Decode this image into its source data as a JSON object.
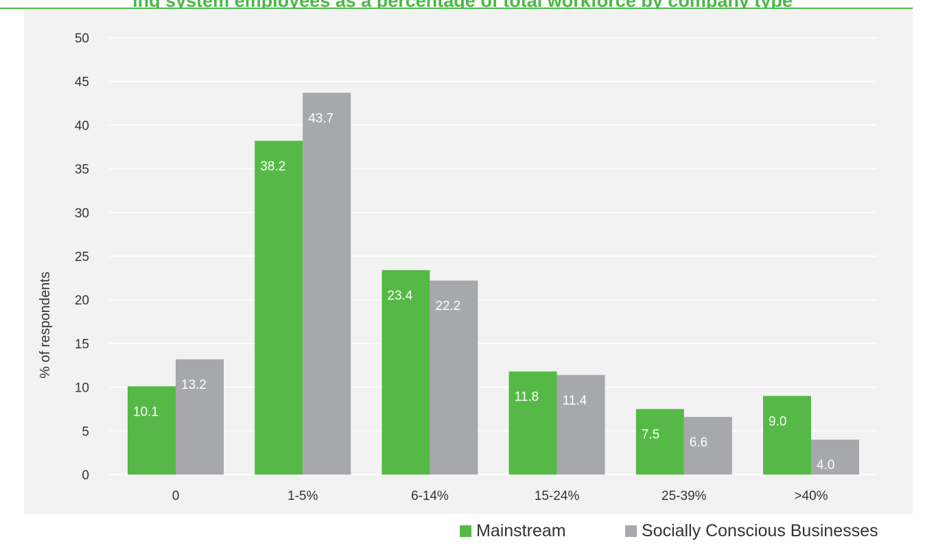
{
  "colors": {
    "mainstream": "#56b947",
    "socially_conscious": "#a6a8ab",
    "title": "#4cb848",
    "grid": "#ffffff",
    "panel": "#f2f2f2"
  },
  "chart_data": {
    "type": "bar",
    "title": "ing system employees as a percentage of total workforce by company type",
    "xlabel": "",
    "ylabel": "% of respondents",
    "ylim": [
      0,
      50
    ],
    "yticks": [
      0,
      5,
      10,
      15,
      20,
      25,
      30,
      35,
      40,
      45,
      50
    ],
    "grid": true,
    "legend_position": "bottom-right",
    "categories": [
      "0",
      "1-5%",
      "6-14%",
      "15-24%",
      "25-39%",
      ">40%"
    ],
    "series": [
      {
        "name": "Mainstream",
        "values": [
          10.1,
          38.2,
          23.4,
          11.8,
          7.5,
          9.0
        ],
        "labels": [
          "10.1",
          "38.2",
          "23.4",
          "11.8",
          "7.5",
          "9.0"
        ]
      },
      {
        "name": "Socially Conscious Businesses",
        "values": [
          13.2,
          43.7,
          22.2,
          11.4,
          6.6,
          4.0
        ],
        "labels": [
          "13.2",
          "43.7",
          "22.2",
          "11.4",
          "6.6",
          "4.0"
        ]
      }
    ]
  }
}
